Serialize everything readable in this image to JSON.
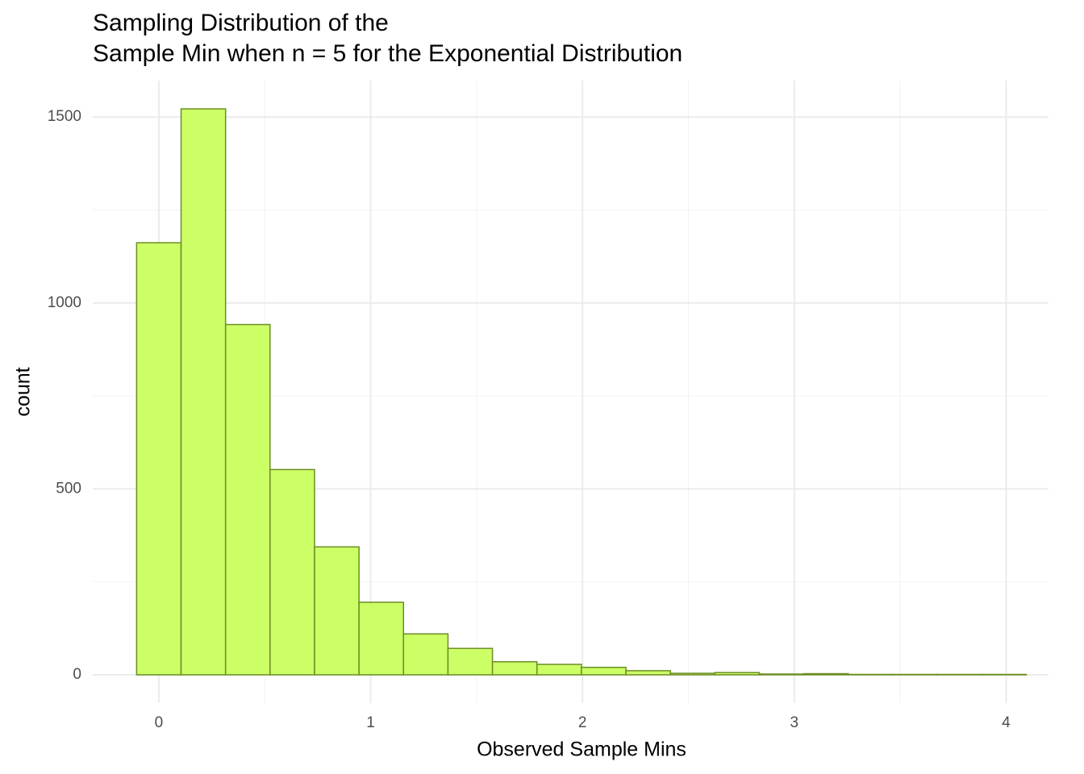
{
  "chart_data": {
    "type": "histogram",
    "title": [
      "Sampling Distribution of the",
      "Sample Min when n = 5 for the Exponential Distribution"
    ],
    "x_label": "Observed Sample Mins",
    "y_label": "count",
    "bins": [
      -0.105,
      0.105,
      0.315,
      0.525,
      0.735,
      0.945,
      1.155,
      1.365,
      1.575,
      1.785,
      1.995,
      2.205,
      2.415,
      2.625,
      2.835,
      3.045,
      3.255,
      3.465,
      3.675,
      3.885,
      4.095
    ],
    "values": [
      1162,
      1522,
      942,
      552,
      344,
      195,
      110,
      71,
      35,
      28,
      20,
      11,
      4,
      6,
      2,
      3,
      1,
      1,
      1,
      1
    ],
    "color": "#ccff66",
    "edge_color": "#6b8e23",
    "xlim": [
      -0.312,
      4.2
    ],
    "xticks": [
      0,
      1,
      2,
      3,
      4
    ],
    "ylim": [
      -76,
      1598
    ],
    "yticks": [
      0,
      500,
      1000,
      1500
    ],
    "grid": true
  }
}
